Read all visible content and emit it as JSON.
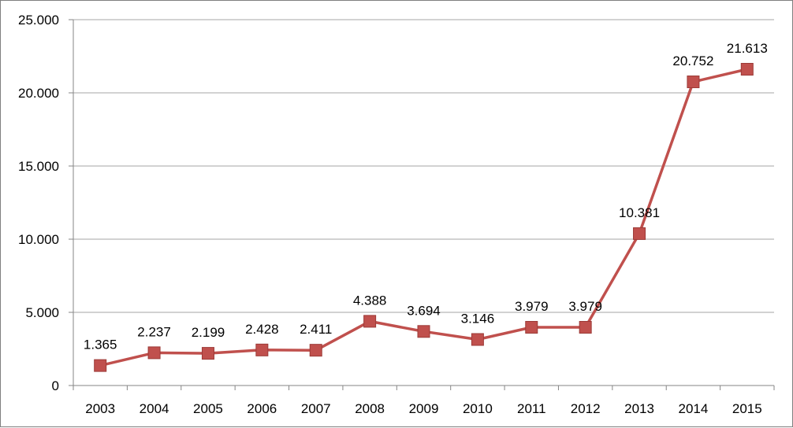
{
  "chart_data": {
    "type": "line",
    "title": "",
    "xlabel": "",
    "ylabel": "",
    "categories": [
      "2003",
      "2004",
      "2005",
      "2006",
      "2007",
      "2008",
      "2009",
      "2010",
      "2011",
      "2012",
      "2013",
      "2014",
      "2015"
    ],
    "series": [
      {
        "values": [
          1365,
          2237,
          2199,
          2428,
          2411,
          4388,
          3694,
          3146,
          3979,
          3979,
          10381,
          20752,
          21613
        ],
        "value_labels": [
          "1.365",
          "2.237",
          "2.199",
          "2.428",
          "2.411",
          "4.388",
          "3.694",
          "3.146",
          "3.979",
          "3.979",
          "10.381",
          "20.752",
          "21.613"
        ],
        "color": "#c0504d",
        "marker": "square"
      }
    ],
    "ylim": [
      0,
      25000
    ],
    "yticks": [
      0,
      5000,
      10000,
      15000,
      20000,
      25000
    ],
    "ytick_labels": [
      "0",
      "5.000",
      "10.000",
      "15.000",
      "20.000",
      "25.000"
    ],
    "grid": true,
    "gridline_color": "#a6a6a6",
    "legend": "none"
  }
}
